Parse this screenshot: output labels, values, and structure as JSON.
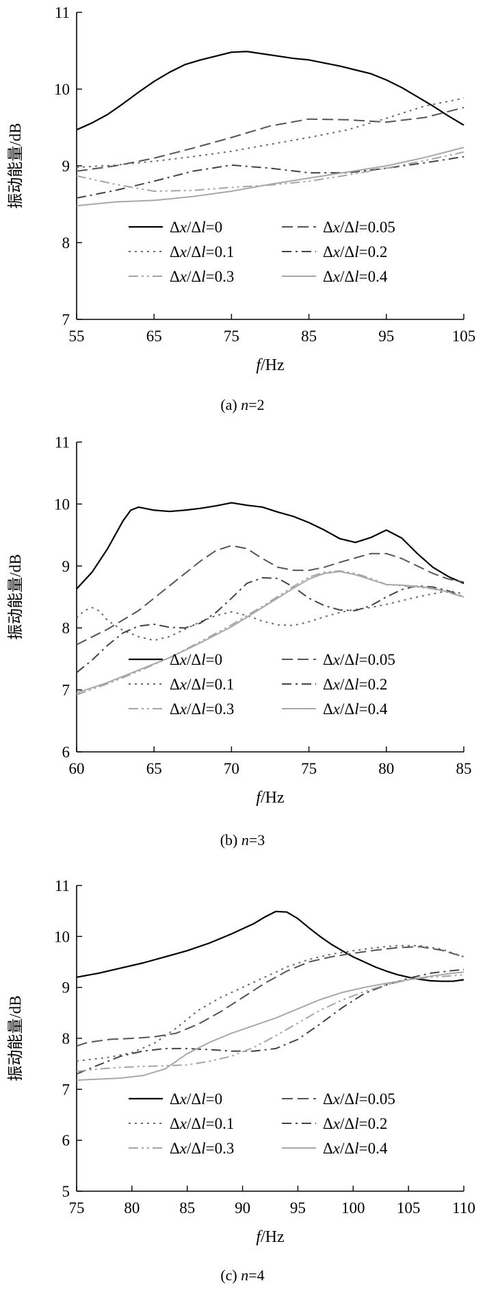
{
  "chart_data": [
    {
      "type": "line",
      "caption_prefix": "(a) ",
      "caption_var": "n",
      "caption_suffix": "=2",
      "ylabel": "振动能量/dB",
      "xlabel_var": "f",
      "xlabel_unit": "/Hz",
      "xlim": [
        55,
        105
      ],
      "ylim": [
        7,
        11
      ],
      "xticks": [
        55,
        65,
        75,
        85,
        95,
        105
      ],
      "yticks": [
        7,
        8,
        9,
        10,
        11
      ],
      "grid": false,
      "legend_position": "lower-center",
      "series": [
        {
          "name": "Δx/Δl=0",
          "x": [
            55,
            57,
            59,
            61,
            63,
            65,
            67,
            69,
            71,
            73,
            75,
            77,
            79,
            81,
            83,
            85,
            87,
            89,
            91,
            93,
            95,
            97,
            99,
            101,
            103,
            105
          ],
          "values": [
            9.47,
            9.56,
            9.67,
            9.81,
            9.96,
            10.1,
            10.22,
            10.32,
            10.38,
            10.43,
            10.48,
            10.49,
            10.46,
            10.43,
            10.4,
            10.38,
            10.34,
            10.3,
            10.25,
            10.2,
            10.12,
            10.02,
            9.9,
            9.78,
            9.65,
            9.53
          ]
        },
        {
          "name": "Δx/Δl=0.05",
          "x": [
            55,
            60,
            65,
            70,
            75,
            80,
            85,
            90,
            95,
            100,
            105
          ],
          "values": [
            8.93,
            9.0,
            9.1,
            9.23,
            9.37,
            9.52,
            9.61,
            9.6,
            9.57,
            9.63,
            9.76
          ]
        },
        {
          "name": "Δx/Δl=0.1",
          "x": [
            55,
            60,
            65,
            70,
            75,
            80,
            85,
            90,
            95,
            100,
            105
          ],
          "values": [
            8.98,
            9.01,
            9.06,
            9.12,
            9.19,
            9.28,
            9.37,
            9.47,
            9.62,
            9.78,
            9.88
          ]
        },
        {
          "name": "Δx/Δl=0.2",
          "x": [
            55,
            60,
            65,
            70,
            75,
            80,
            85,
            90,
            95,
            100,
            105
          ],
          "values": [
            8.58,
            8.68,
            8.8,
            8.93,
            9.01,
            8.97,
            8.91,
            8.91,
            8.97,
            9.04,
            9.12
          ]
        },
        {
          "name": "Δx/Δl=0.3",
          "x": [
            55,
            60,
            65,
            70,
            75,
            80,
            85,
            90,
            95,
            100,
            105
          ],
          "values": [
            8.87,
            8.76,
            8.67,
            8.68,
            8.72,
            8.75,
            8.8,
            8.88,
            8.97,
            9.07,
            9.18
          ]
        },
        {
          "name": "Δx/Δl=0.4",
          "x": [
            55,
            60,
            65,
            70,
            75,
            80,
            85,
            90,
            95,
            100,
            105
          ],
          "values": [
            8.48,
            8.53,
            8.55,
            8.6,
            8.67,
            8.76,
            8.84,
            8.92,
            9.0,
            9.11,
            9.24
          ]
        }
      ]
    },
    {
      "type": "line",
      "caption_prefix": "(b) ",
      "caption_var": "n",
      "caption_suffix": "=3",
      "ylabel": "振动能量/dB",
      "xlabel_var": "f",
      "xlabel_unit": "/Hz",
      "xlim": [
        60,
        85
      ],
      "ylim": [
        6,
        11
      ],
      "xticks": [
        60,
        65,
        70,
        75,
        80,
        85
      ],
      "yticks": [
        6,
        7,
        8,
        9,
        10,
        11
      ],
      "grid": false,
      "legend_position": "lower-center",
      "series": [
        {
          "name": "Δx/Δl=0",
          "x": [
            60,
            61,
            62,
            63,
            63.5,
            64,
            65,
            66,
            67,
            68,
            69,
            70,
            71,
            72,
            73,
            74,
            75,
            76,
            77,
            78,
            79,
            80,
            81,
            82,
            83,
            84,
            85
          ],
          "values": [
            8.63,
            8.9,
            9.28,
            9.73,
            9.9,
            9.95,
            9.9,
            9.88,
            9.9,
            9.93,
            9.97,
            10.02,
            9.98,
            9.95,
            9.87,
            9.8,
            9.7,
            9.58,
            9.44,
            9.38,
            9.46,
            9.58,
            9.45,
            9.2,
            8.98,
            8.83,
            8.72
          ]
        },
        {
          "name": "Δx/Δl=0.05",
          "x": [
            60,
            62,
            64,
            66,
            68,
            69,
            70,
            71,
            72,
            73,
            74,
            75,
            76,
            77,
            78,
            79,
            80,
            81,
            82,
            83,
            84,
            85
          ],
          "values": [
            7.73,
            7.98,
            8.28,
            8.68,
            9.08,
            9.25,
            9.33,
            9.28,
            9.12,
            8.98,
            8.93,
            8.93,
            8.98,
            9.06,
            9.13,
            9.2,
            9.2,
            9.12,
            9.0,
            8.88,
            8.79,
            8.74
          ]
        },
        {
          "name": "Δx/Δl=0.1",
          "x": [
            60,
            60.5,
            61,
            61.5,
            62,
            63,
            64,
            65,
            66,
            67,
            68,
            69,
            70,
            71,
            72,
            73,
            74,
            75,
            76,
            77,
            78,
            79,
            80,
            81,
            82,
            83,
            84,
            85
          ],
          "values": [
            8.16,
            8.28,
            8.33,
            8.27,
            8.12,
            7.96,
            7.86,
            7.8,
            7.86,
            7.98,
            8.1,
            8.2,
            8.26,
            8.2,
            8.11,
            8.05,
            8.04,
            8.1,
            8.18,
            8.25,
            8.3,
            8.33,
            8.38,
            8.44,
            8.5,
            8.55,
            8.6,
            8.55
          ]
        },
        {
          "name": "Δx/Δl=0.2",
          "x": [
            60,
            61,
            62,
            63,
            64,
            65,
            66,
            67,
            68,
            69,
            70,
            71,
            72,
            73,
            74,
            75,
            76,
            77,
            78,
            79,
            80,
            81,
            82,
            83,
            84,
            85
          ],
          "values": [
            7.28,
            7.48,
            7.72,
            7.92,
            8.03,
            8.06,
            8.01,
            8.0,
            8.08,
            8.25,
            8.48,
            8.72,
            8.81,
            8.8,
            8.66,
            8.48,
            8.36,
            8.29,
            8.28,
            8.36,
            8.5,
            8.62,
            8.68,
            8.66,
            8.6,
            8.5
          ]
        },
        {
          "name": "Δx/Δl=0.3",
          "x": [
            60,
            62,
            64,
            66,
            68,
            70,
            72,
            74,
            75,
            76,
            77,
            78,
            79,
            80,
            81,
            82,
            83,
            84,
            85
          ],
          "values": [
            6.92,
            7.1,
            7.3,
            7.52,
            7.78,
            8.05,
            8.35,
            8.67,
            8.82,
            8.9,
            8.92,
            8.88,
            8.8,
            8.7,
            8.68,
            8.66,
            8.63,
            8.57,
            8.5
          ]
        },
        {
          "name": "Δx/Δl=0.4",
          "x": [
            60,
            62,
            64,
            66,
            68,
            70,
            72,
            74,
            75,
            76,
            77,
            78,
            79,
            80,
            81,
            82,
            83,
            84,
            85
          ],
          "values": [
            6.95,
            7.12,
            7.32,
            7.52,
            7.76,
            8.02,
            8.33,
            8.64,
            8.79,
            8.88,
            8.91,
            8.86,
            8.78,
            8.7,
            8.69,
            8.67,
            8.64,
            8.58,
            8.5
          ]
        }
      ]
    },
    {
      "type": "line",
      "caption_prefix": "(c) ",
      "caption_var": "n",
      "caption_suffix": "=4",
      "ylabel": "振动能量/dB",
      "xlabel_var": "f",
      "xlabel_unit": "/Hz",
      "xlim": [
        75,
        110
      ],
      "ylim": [
        5,
        11
      ],
      "xticks": [
        75,
        80,
        85,
        90,
        95,
        100,
        105,
        110
      ],
      "yticks": [
        5,
        6,
        7,
        8,
        9,
        10,
        11
      ],
      "grid": false,
      "legend_position": "lower-center",
      "series": [
        {
          "name": "Δx/Δl=0",
          "x": [
            75,
            77,
            79,
            81,
            83,
            85,
            87,
            89,
            91,
            92,
            93,
            94,
            95,
            96,
            97,
            98,
            99,
            100,
            101,
            102,
            103,
            104,
            105,
            106,
            107,
            108,
            109,
            110
          ],
          "values": [
            9.2,
            9.28,
            9.38,
            9.48,
            9.6,
            9.72,
            9.87,
            10.05,
            10.25,
            10.38,
            10.49,
            10.48,
            10.35,
            10.17,
            10.0,
            9.85,
            9.72,
            9.6,
            9.5,
            9.4,
            9.32,
            9.25,
            9.2,
            9.16,
            9.13,
            9.12,
            9.12,
            9.15
          ]
        },
        {
          "name": "Δx/Δl=0.05",
          "x": [
            75,
            76,
            78,
            80,
            82,
            84,
            86,
            88,
            90,
            92,
            94,
            96,
            98,
            100,
            102,
            104,
            106,
            108,
            110
          ],
          "values": [
            7.85,
            7.92,
            7.98,
            8.0,
            8.03,
            8.1,
            8.28,
            8.52,
            8.8,
            9.08,
            9.32,
            9.5,
            9.6,
            9.67,
            9.73,
            9.78,
            9.8,
            9.73,
            9.6
          ]
        },
        {
          "name": "Δx/Δl=0.1",
          "x": [
            75,
            76,
            78,
            80,
            82,
            84,
            86,
            88,
            90,
            92,
            94,
            96,
            98,
            100,
            102,
            104,
            106,
            108,
            110
          ],
          "values": [
            7.55,
            7.58,
            7.63,
            7.72,
            7.9,
            8.2,
            8.55,
            8.8,
            9.0,
            9.2,
            9.4,
            9.55,
            9.65,
            9.72,
            9.78,
            9.82,
            9.82,
            9.75,
            9.6
          ]
        },
        {
          "name": "Δx/Δl=0.2",
          "x": [
            75,
            77,
            79,
            81,
            83,
            85,
            87,
            89,
            91,
            93,
            95,
            97,
            99,
            101,
            103,
            105,
            107,
            109,
            110
          ],
          "values": [
            7.3,
            7.48,
            7.65,
            7.75,
            7.8,
            7.8,
            7.78,
            7.75,
            7.75,
            7.8,
            7.98,
            8.28,
            8.6,
            8.88,
            9.05,
            9.18,
            9.28,
            9.33,
            9.35
          ]
        },
        {
          "name": "Δx/Δl=0.3",
          "x": [
            75,
            77,
            79,
            81,
            83,
            85,
            87,
            89,
            91,
            93,
            95,
            97,
            99,
            101,
            103,
            105,
            107,
            109,
            110
          ],
          "values": [
            7.35,
            7.4,
            7.43,
            7.45,
            7.46,
            7.48,
            7.55,
            7.65,
            7.82,
            8.05,
            8.3,
            8.55,
            8.75,
            8.92,
            9.05,
            9.15,
            9.2,
            9.23,
            9.25
          ]
        },
        {
          "name": "Δx/Δl=0.4",
          "x": [
            75,
            77,
            79,
            81,
            83,
            85,
            87,
            89,
            91,
            93,
            95,
            97,
            99,
            101,
            103,
            105,
            107,
            109,
            110
          ],
          "values": [
            7.18,
            7.2,
            7.22,
            7.27,
            7.4,
            7.7,
            7.92,
            8.1,
            8.25,
            8.4,
            8.58,
            8.76,
            8.9,
            9.0,
            9.08,
            9.15,
            9.22,
            9.28,
            9.3
          ]
        }
      ]
    }
  ],
  "series_styles": [
    {
      "color": "#000000",
      "dash": "",
      "width": 2.2
    },
    {
      "color": "#555555",
      "dash": "16,7",
      "width": 2.0
    },
    {
      "color": "#6a6a6a",
      "dash": "3,6",
      "width": 2.0
    },
    {
      "color": "#444444",
      "dash": "14,6,3,6",
      "width": 2.0
    },
    {
      "color": "#a5a5a5",
      "dash": "14,5,3,5,3,5",
      "width": 2.0
    },
    {
      "color": "#a8a8a8",
      "dash": "",
      "width": 2.0
    }
  ]
}
